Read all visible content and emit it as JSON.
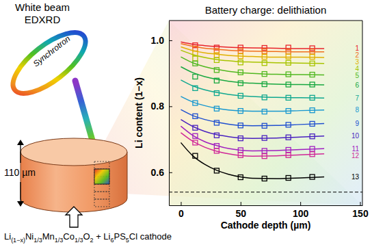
{
  "chart_data": {
    "type": "line",
    "title": "Battery charge: delithiation",
    "x_label": "Cathode depth (µm)",
    "y_label": "Li content (1−x)",
    "x": [
      12,
      30,
      50,
      70,
      90,
      110
    ],
    "fit_x": [
      0,
      10,
      20,
      30,
      40,
      50,
      60,
      80,
      100,
      120
    ],
    "series": [
      {
        "name": "1",
        "color": "#e8232b",
        "marker": "square",
        "values": [
          0.985,
          0.978,
          0.978,
          0.977,
          0.978,
          0.976
        ],
        "fit": [
          0.995,
          0.988,
          0.984,
          0.981,
          0.979,
          0.978,
          0.977,
          0.976,
          0.975,
          0.975
        ]
      },
      {
        "name": "2",
        "color": "#f0701e",
        "marker": "square",
        "values": [
          0.975,
          0.968,
          0.968,
          0.967,
          0.966,
          0.966
        ],
        "fit": [
          0.99,
          0.982,
          0.976,
          0.973,
          0.97,
          0.968,
          0.967,
          0.966,
          0.965,
          0.965
        ]
      },
      {
        "name": "3",
        "color": "#e0b000",
        "marker": "square",
        "values": [
          0.96,
          0.955,
          0.952,
          0.95,
          0.951,
          0.95
        ],
        "fit": [
          0.98,
          0.969,
          0.962,
          0.958,
          0.954,
          0.952,
          0.951,
          0.949,
          0.949,
          0.948
        ]
      },
      {
        "name": "4",
        "color": "#a8c400",
        "marker": "square",
        "values": [
          0.945,
          0.94,
          0.933,
          0.931,
          0.932,
          0.93
        ],
        "fit": [
          0.97,
          0.957,
          0.948,
          0.942,
          0.938,
          0.935,
          0.934,
          0.932,
          0.931,
          0.93
        ]
      },
      {
        "name": "5",
        "color": "#50b820",
        "marker": "square",
        "values": [
          0.93,
          0.91,
          0.903,
          0.898,
          0.897,
          0.896
        ],
        "fit": [
          0.95,
          0.932,
          0.92,
          0.912,
          0.906,
          0.902,
          0.9,
          0.897,
          0.896,
          0.895
        ]
      },
      {
        "name": "6",
        "color": "#18a840",
        "marker": "square",
        "values": [
          0.89,
          0.878,
          0.87,
          0.867,
          0.866,
          0.866
        ],
        "fit": [
          0.92,
          0.902,
          0.89,
          0.882,
          0.876,
          0.872,
          0.87,
          0.867,
          0.866,
          0.865
        ]
      },
      {
        "name": "7",
        "color": "#10a890",
        "marker": "square",
        "values": [
          0.855,
          0.84,
          0.832,
          0.827,
          0.826,
          0.826
        ],
        "fit": [
          0.88,
          0.862,
          0.85,
          0.842,
          0.836,
          0.832,
          0.83,
          0.827,
          0.826,
          0.825
        ]
      },
      {
        "name": "8",
        "color": "#1898d0",
        "marker": "square",
        "values": [
          0.81,
          0.793,
          0.786,
          0.784,
          0.786,
          0.788
        ],
        "fit": [
          0.83,
          0.813,
          0.802,
          0.794,
          0.789,
          0.786,
          0.785,
          0.785,
          0.787,
          0.789
        ]
      },
      {
        "name": "9",
        "color": "#2050d0",
        "marker": "square",
        "values": [
          0.77,
          0.75,
          0.742,
          0.741,
          0.744,
          0.747
        ],
        "fit": [
          0.79,
          0.772,
          0.76,
          0.752,
          0.746,
          0.742,
          0.741,
          0.742,
          0.745,
          0.748
        ]
      },
      {
        "name": "10",
        "color": "#4a22c0",
        "marker": "square",
        "values": [
          0.735,
          0.712,
          0.703,
          0.704,
          0.706,
          0.709
        ],
        "fit": [
          0.76,
          0.739,
          0.724,
          0.714,
          0.708,
          0.704,
          0.703,
          0.704,
          0.707,
          0.71
        ]
      },
      {
        "name": "11",
        "color": "#a020c0",
        "marker": "square",
        "values": [
          0.71,
          0.68,
          0.667,
          0.665,
          0.668,
          0.671
        ],
        "fit": [
          0.74,
          0.712,
          0.693,
          0.681,
          0.672,
          0.667,
          0.665,
          0.666,
          0.669,
          0.672
        ]
      },
      {
        "name": "12",
        "color": "#d02898",
        "marker": "square",
        "values": [
          0.69,
          0.665,
          0.652,
          0.649,
          0.652,
          0.655
        ],
        "fit": [
          0.72,
          0.694,
          0.676,
          0.664,
          0.656,
          0.651,
          0.649,
          0.65,
          0.653,
          0.656
        ]
      },
      {
        "name": "13",
        "color": "#000000",
        "marker": "square",
        "values": [
          0.65,
          0.605,
          0.585,
          0.581,
          0.583,
          0.586
        ],
        "fit": [
          0.69,
          0.65,
          0.624,
          0.606,
          0.594,
          0.586,
          0.582,
          0.581,
          0.583,
          0.586
        ]
      }
    ],
    "lower_limit": 0.54,
    "xlim": [
      -10,
      152
    ],
    "xticks": [
      0,
      50,
      100,
      150
    ],
    "ylim": [
      0.5,
      1.06
    ],
    "yticks": [
      0.6,
      0.8,
      {
        "value": 1,
        "label": "1.0"
      }
    ],
    "grid": false
  },
  "diagram": {
    "title_lines": [
      "White beam",
      "EDXRD"
    ],
    "ring_label": "Synchrotron",
    "thickness_label": "110 µm",
    "formula": [
      {
        "text": "Li",
        "sub": false
      },
      {
        "text": "(1−x)",
        "sub": true
      },
      {
        "text": "Ni",
        "sub": false
      },
      {
        "text": "1/3",
        "sub": true
      },
      {
        "text": "Mn",
        "sub": false
      },
      {
        "text": "1/3",
        "sub": true
      },
      {
        "text": "Co",
        "sub": false
      },
      {
        "text": "1/3",
        "sub": true
      },
      {
        "text": "O",
        "sub": false
      },
      {
        "text": "2",
        "sub": true
      },
      {
        "text": " + Li",
        "sub": false
      },
      {
        "text": "6",
        "sub": true
      },
      {
        "text": "PS",
        "sub": false
      },
      {
        "text": "5",
        "sub": true
      },
      {
        "text": "Cl cathode",
        "sub": false
      }
    ]
  }
}
